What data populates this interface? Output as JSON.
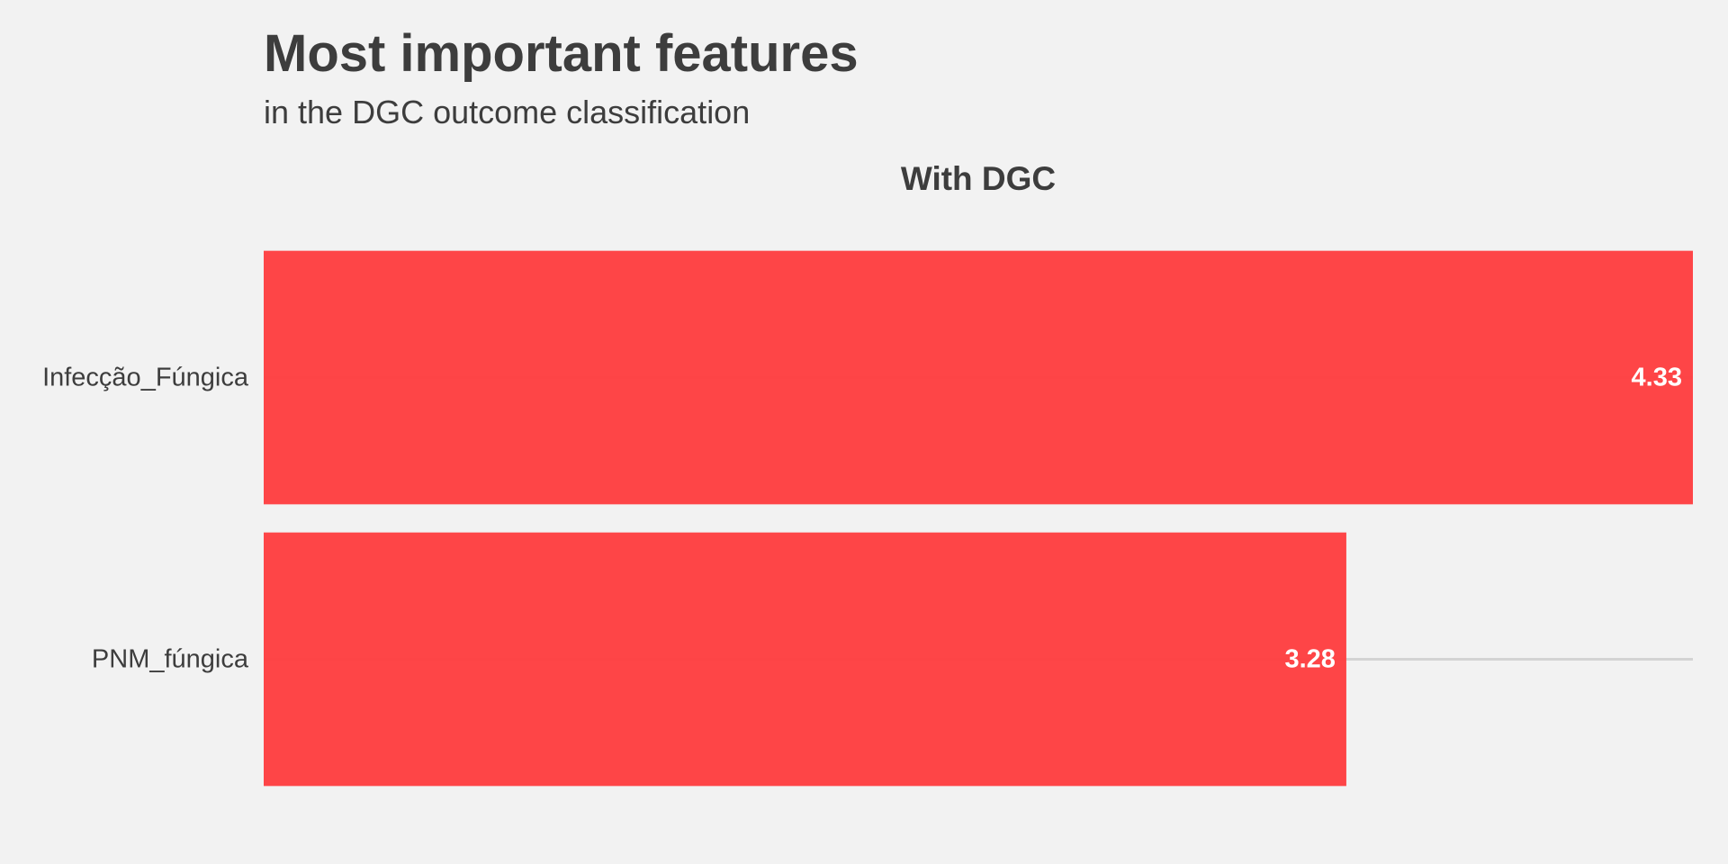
{
  "chart_data": {
    "type": "bar",
    "orientation": "horizontal",
    "title": "Most important features",
    "subtitle": "in the DGC outcome classification",
    "facet_title": "With DGC",
    "categories": [
      "Infecção_Fúngica",
      "PNM_fúngica"
    ],
    "values": [
      4.33,
      3.28
    ],
    "value_labels": [
      "4.33",
      "3.28"
    ],
    "xlim": [
      0,
      4.33
    ],
    "grid": "horizontal-major",
    "legend": "none",
    "colors": {
      "bar": "#fe3d3f",
      "background": "#f2f2f2",
      "text": "#3d3d3d",
      "value_text": "#ffffff",
      "grid": "#d4d4d4"
    }
  }
}
